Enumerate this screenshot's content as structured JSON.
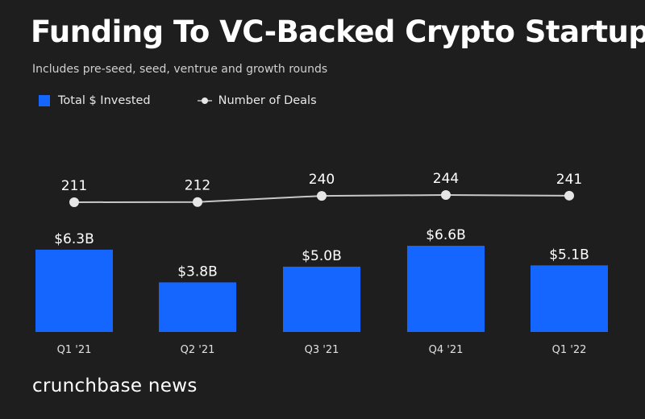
{
  "chart_data": {
    "type": "bar",
    "title": "Funding To VC-Backed Crypto Startups",
    "subtitle": "Includes pre-seed, seed, ventrue and growth rounds",
    "categories": [
      "Q1 '21",
      "Q2 '21",
      "Q3 '21",
      "Q4 '21",
      "Q1 '22"
    ],
    "series": [
      {
        "name": "Total $ Invested",
        "type": "bar",
        "values": [
          6.3,
          3.8,
          5.0,
          6.6,
          5.1
        ],
        "labels": [
          "$6.3B",
          "$3.8B",
          "$5.0B",
          "$6.6B",
          "$5.1B"
        ],
        "color": "#1565ff"
      },
      {
        "name": "Number of Deals",
        "type": "line",
        "values": [
          211,
          212,
          240,
          244,
          241
        ],
        "labels": [
          "211",
          "212",
          "240",
          "244",
          "241"
        ],
        "color": "#e6e6e6"
      }
    ],
    "legend": "top-left",
    "grid": false
  },
  "brand": "crunchbase news",
  "colors": {
    "background": "#1e1e1e",
    "bar": "#1565ff",
    "line": "#c8c8c8",
    "marker": "#e6e6e6"
  }
}
